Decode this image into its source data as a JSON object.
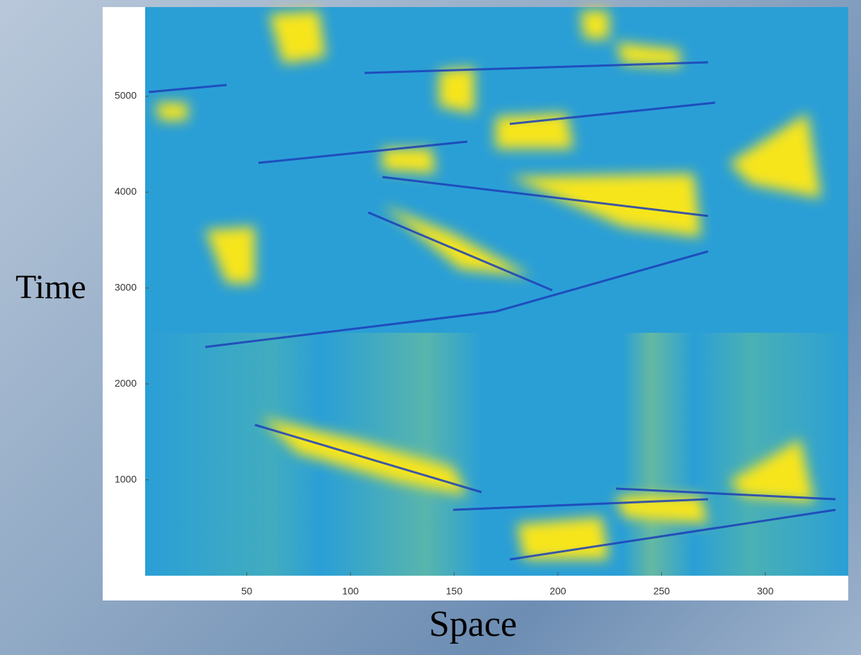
{
  "chart_data": {
    "type": "heatmap",
    "xlabel": "Space",
    "ylabel": "Time",
    "xlim": [
      1,
      340
    ],
    "xticks": [
      50,
      100,
      150,
      200,
      250,
      300
    ],
    "ylim": [
      0,
      5930
    ],
    "yticks": [
      1000,
      2000,
      3000,
      4000,
      5000
    ]
  }
}
